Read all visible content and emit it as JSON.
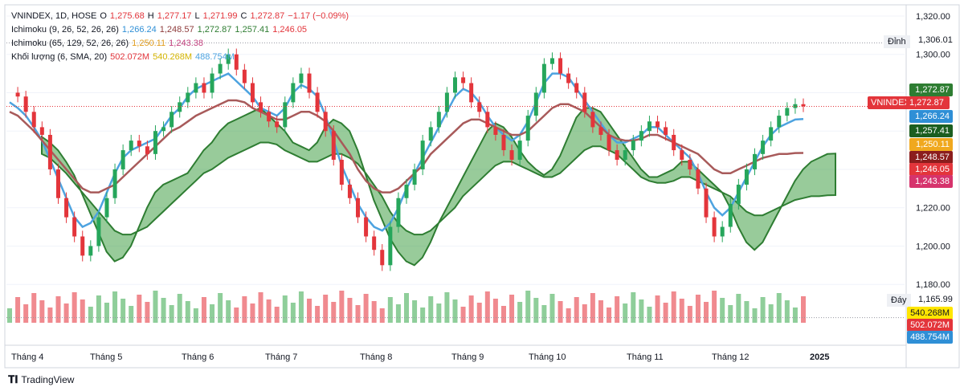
{
  "legend": {
    "main": {
      "symbol": "VNINDEX, 1D, HOSE",
      "o_label": "O",
      "o": "1,275.68",
      "h_label": "H",
      "h": "1,277.17",
      "l_label": "L",
      "l": "1,271.99",
      "c_label": "C",
      "c": "1,272.87",
      "chg": "−1.17 (−0.09%)"
    },
    "ichi1": {
      "name": "Ichimoku (9, 26, 52, 26, 26)",
      "v1": "1,266.24",
      "v2": "1,248.57",
      "v3": "1,272.87",
      "v4": "1,257.41",
      "v5": "1,246.05"
    },
    "ichi2": {
      "name": "Ichimoku (65, 129, 52, 26, 26)",
      "v1": "1,250.11",
      "v2": "1,243.38"
    },
    "vol": {
      "name": "Khối lượng (6, SMA, 20)",
      "v1": "502.072M",
      "v2": "540.268M",
      "v3": "488.754M"
    }
  },
  "price_boxes": [
    {
      "label": "1,272.87",
      "color": "#2e7d32",
      "value": 1272.87
    },
    {
      "label": "1,266.24",
      "color": "#2f8fd6",
      "value": 1266.24
    },
    {
      "label": "1,257.41",
      "color": "#1b5e20",
      "value": 1257.41
    },
    {
      "label": "1,250.11",
      "color": "#f0a81e",
      "value": 1250.11
    },
    {
      "label": "1,248.57",
      "color": "#8b1d1d",
      "value": 1248.57
    },
    {
      "label": "1,246.05",
      "color": "#e3353b",
      "value": 1246.05
    },
    {
      "label": "1,243.38",
      "color": "#d6336c",
      "value": 1243.38
    }
  ],
  "vol_boxes": [
    {
      "label": "540.268M",
      "color": "#ffe600",
      "text": "#131722"
    },
    {
      "label": "502.072M",
      "color": "#e3353b",
      "text": "#ffffff"
    },
    {
      "label": "488.754M",
      "color": "#2f8fd6",
      "text": "#ffffff"
    }
  ],
  "tags": {
    "symbol": "VNINDEX",
    "symbol_value": "1,272.87",
    "peak_label": "Đỉnh",
    "peak_value": "1,306.01",
    "trough_label": "Đáy",
    "trough_value": "1,165.99"
  },
  "chart_data": {
    "type": "line",
    "title": "VNINDEX, 1D, HOSE",
    "y_ticks": [
      1180,
      1200,
      1220,
      1240,
      1260,
      1280,
      1300,
      1320
    ],
    "y_tick_labels": [
      "1,180.00",
      "1,200.00",
      "1,220.00",
      "1,240.00",
      "1,260.00",
      "1,280.00",
      "1,300.00",
      "1,320.00"
    ],
    "ylim": [
      1165,
      1325
    ],
    "x_tick_labels": [
      "Tháng 4",
      "Tháng 5",
      "Tháng 6",
      "Tháng 7",
      "Tháng 8",
      "Tháng 9",
      "Tháng 10",
      "Tháng 11",
      "Tháng 12",
      "2025"
    ],
    "grid": true,
    "series": [
      {
        "name": "Close",
        "values": [
          1280,
          1278,
          1270,
          1262,
          1258,
          1240,
          1225,
          1215,
          1205,
          1195,
          1200,
          1215,
          1225,
          1240,
          1250,
          1255,
          1252,
          1248,
          1260,
          1262,
          1270,
          1275,
          1280,
          1285,
          1280,
          1290,
          1295,
          1300,
          1292,
          1285,
          1275,
          1270,
          1265,
          1262,
          1275,
          1285,
          1290,
          1280,
          1270,
          1260,
          1245,
          1232,
          1225,
          1215,
          1205,
          1198,
          1190,
          1210,
          1225,
          1232,
          1240,
          1255,
          1262,
          1270,
          1280,
          1288,
          1285,
          1275,
          1270,
          1262,
          1258,
          1250,
          1245,
          1255,
          1268,
          1280,
          1295,
          1298,
          1290,
          1285,
          1280,
          1270,
          1262,
          1258,
          1250,
          1245,
          1250,
          1255,
          1260,
          1265,
          1262,
          1258,
          1250,
          1245,
          1240,
          1230,
          1215,
          1205,
          1210,
          1222,
          1232,
          1240,
          1248,
          1255,
          1262,
          1268,
          1272,
          1274,
          1272.87
        ]
      },
      {
        "name": "Tenkan 1,266.24",
        "values": [
          1275,
          1272,
          1268,
          1262,
          1255,
          1245,
          1235,
          1225,
          1215,
          1210,
          1212,
          1218,
          1228,
          1238,
          1246,
          1250,
          1252,
          1254,
          1256,
          1262,
          1268,
          1272,
          1278,
          1282,
          1284,
          1286,
          1288,
          1290,
          1286,
          1282,
          1278,
          1272,
          1270,
          1268,
          1272,
          1280,
          1284,
          1282,
          1278,
          1268,
          1255,
          1242,
          1232,
          1222,
          1215,
          1210,
          1208,
          1212,
          1220,
          1230,
          1238,
          1246,
          1254,
          1262,
          1270,
          1278,
          1282,
          1280,
          1275,
          1268,
          1262,
          1258,
          1255,
          1258,
          1265,
          1275,
          1285,
          1290,
          1290,
          1288,
          1282,
          1276,
          1270,
          1264,
          1258,
          1254,
          1254,
          1256,
          1258,
          1262,
          1262,
          1258,
          1254,
          1250,
          1246,
          1238,
          1228,
          1220,
          1216,
          1220,
          1228,
          1236,
          1244,
          1252,
          1258,
          1262,
          1264,
          1266,
          1266.24
        ]
      },
      {
        "name": "Kijun 1,248.57",
        "values": [
          1270,
          1268,
          1264,
          1260,
          1255,
          1250,
          1245,
          1240,
          1235,
          1230,
          1228,
          1228,
          1230,
          1232,
          1236,
          1240,
          1244,
          1248,
          1252,
          1256,
          1260,
          1262,
          1265,
          1268,
          1270,
          1272,
          1274,
          1276,
          1276,
          1275,
          1272,
          1270,
          1268,
          1266,
          1266,
          1268,
          1270,
          1270,
          1268,
          1265,
          1260,
          1254,
          1248,
          1240,
          1234,
          1230,
          1228,
          1228,
          1230,
          1234,
          1238,
          1242,
          1248,
          1252,
          1256,
          1260,
          1264,
          1266,
          1266,
          1264,
          1262,
          1260,
          1258,
          1258,
          1260,
          1264,
          1268,
          1272,
          1274,
          1274,
          1272,
          1270,
          1266,
          1262,
          1258,
          1256,
          1255,
          1255,
          1256,
          1258,
          1258,
          1256,
          1254,
          1252,
          1250,
          1248,
          1244,
          1240,
          1238,
          1238,
          1240,
          1242,
          1244,
          1246,
          1247,
          1248,
          1248,
          1248.5,
          1248.57
        ]
      }
    ]
  }
}
